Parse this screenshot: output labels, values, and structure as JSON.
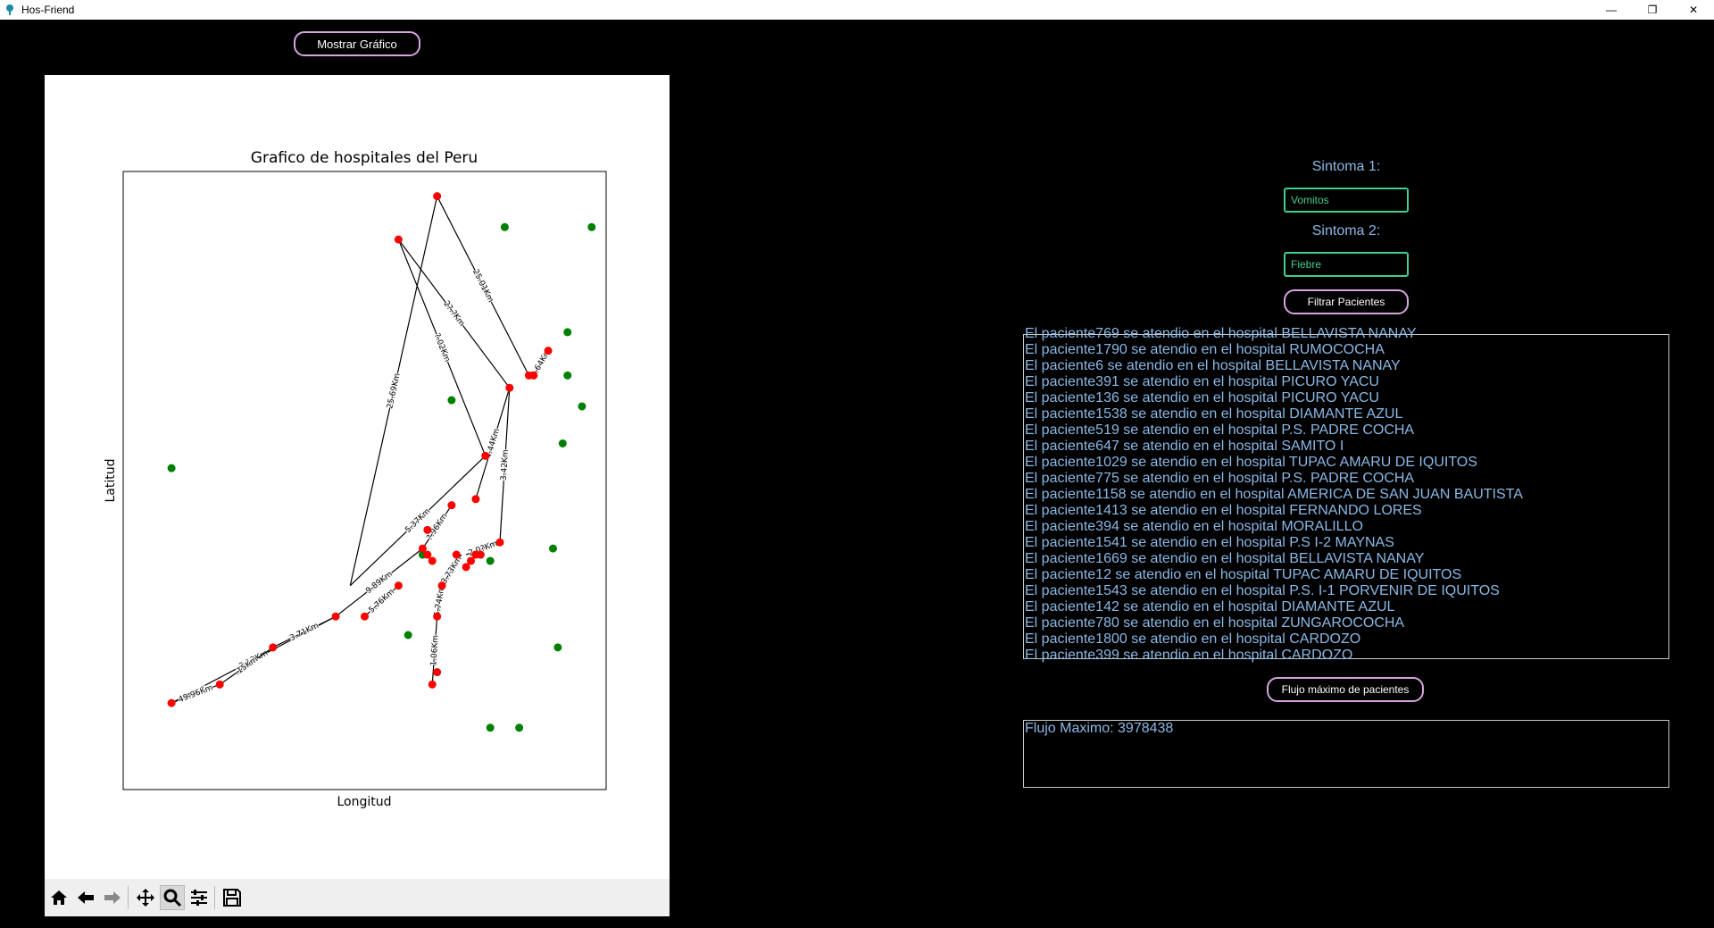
{
  "window": {
    "title": "Hos-Friend",
    "controls": {
      "minimize": "—",
      "restore": "❐",
      "close": "✕"
    }
  },
  "buttons": {
    "show_chart": "Mostrar Gráfico",
    "filter_patients": "Filtrar Pacientes",
    "max_flow": "Flujo máximo de pacientes"
  },
  "symptoms": {
    "label1": "Sintoma 1:",
    "value1": "Vomitos",
    "label2": "Sintoma 2:",
    "value2": "Fiebre"
  },
  "patients": [
    "El paciente769 se atendio en el hospital BELLAVISTA NANAY",
    "El paciente1790 se atendio en el hospital RUMOCOCHA",
    "El paciente6 se atendio en el hospital BELLAVISTA NANAY",
    "El paciente391 se atendio en el hospital PICURO YACU",
    "El paciente136 se atendio en el hospital PICURO YACU",
    "El paciente1538 se atendio en el hospital DIAMANTE AZUL",
    "El paciente519 se atendio en el hospital P.S. PADRE COCHA",
    "El paciente647 se atendio en el hospital SAMITO I",
    "El paciente1029 se atendio en el hospital TUPAC AMARU DE IQUITOS",
    "El paciente775 se atendio en el hospital P.S. PADRE COCHA",
    "El paciente1158 se atendio en el hospital AMERICA DE SAN JUAN BAUTISTA",
    "El paciente1413 se atendio en el hospital FERNANDO LORES",
    "El paciente394 se atendio en el hospital MORALILLO",
    "El paciente1541 se atendio en el hospital P.S I-2 MAYNAS",
    "El paciente1669 se atendio en el hospital BELLAVISTA NANAY",
    "El paciente12 se atendio en el hospital TUPAC AMARU DE IQUITOS",
    "El paciente1543 se atendio en el hospital P.S. I-1 PORVENIR DE IQUITOS",
    "El paciente142 se atendio en el hospital DIAMANTE AZUL",
    "El paciente780 se atendio en el hospital ZUNGAROCOCHA",
    "El paciente1800 se atendio en el hospital CARDOZO",
    "El paciente399 se atendio en el hospital CARDOZO"
  ],
  "flow": {
    "text": "Flujo Maximo: 3978438"
  },
  "colors": {
    "route_node": "#ff0000",
    "other_node": "#008000",
    "edge": "#000000",
    "accent_border": "#d9a3e0",
    "input_border": "#3fcf8e",
    "text_blue": "#8bb8e6"
  },
  "toolbar": {
    "icons": [
      "home-icon",
      "back-icon",
      "forward-icon",
      "pan-icon",
      "zoom-icon",
      "configure-icon",
      "save-icon"
    ]
  },
  "chart_data": {
    "type": "scatter",
    "title": "Grafico de hospitales del Peru",
    "xlabel": "Longitud",
    "ylabel": "Latitud",
    "xlim": [
      0,
      100
    ],
    "ylim": [
      0,
      100
    ],
    "grid": false,
    "red_points": [
      [
        65,
        96
      ],
      [
        57,
        89
      ],
      [
        88,
        71
      ],
      [
        84,
        67
      ],
      [
        85,
        67
      ],
      [
        80,
        65
      ],
      [
        75,
        54
      ],
      [
        73,
        47
      ],
      [
        68,
        46
      ],
      [
        78,
        40
      ],
      [
        63,
        42
      ],
      [
        62,
        39
      ],
      [
        63,
        38
      ],
      [
        64,
        37
      ],
      [
        69,
        38
      ],
      [
        73,
        38
      ],
      [
        74,
        38
      ],
      [
        71,
        36
      ],
      [
        72,
        37
      ],
      [
        57,
        33
      ],
      [
        66,
        33
      ],
      [
        65,
        28
      ],
      [
        50,
        28
      ],
      [
        44,
        28
      ],
      [
        31,
        23
      ],
      [
        20,
        17
      ],
      [
        10,
        14
      ],
      [
        65,
        19
      ],
      [
        64,
        17
      ]
    ],
    "green_points": [
      [
        79,
        91
      ],
      [
        97,
        91
      ],
      [
        92,
        74
      ],
      [
        92,
        67
      ],
      [
        95,
        62
      ],
      [
        68,
        63
      ],
      [
        91,
        56
      ],
      [
        10,
        52
      ],
      [
        62,
        38
      ],
      [
        76,
        37
      ],
      [
        89,
        39
      ],
      [
        59,
        25
      ],
      [
        90,
        23
      ],
      [
        76,
        10
      ],
      [
        82,
        10
      ]
    ],
    "edges": [
      {
        "from": [
          65,
          96
        ],
        "to": [
          47,
          33
        ],
        "label": "25.69Km"
      },
      {
        "from": [
          65,
          96
        ],
        "to": [
          84,
          67
        ],
        "label": "25.01Km"
      },
      {
        "from": [
          57,
          89
        ],
        "to": [
          80,
          65
        ],
        "label": "2?.?Km"
      },
      {
        "from": [
          57,
          89
        ],
        "to": [
          75,
          54
        ],
        "label": "?.02Km"
      },
      {
        "from": [
          85,
          67
        ],
        "to": [
          88,
          71
        ],
        "label": "3.64Km"
      },
      {
        "from": [
          80,
          65
        ],
        "to": [
          73,
          47
        ],
        "label": "4.44Km"
      },
      {
        "from": [
          80,
          65
        ],
        "to": [
          78,
          40
        ],
        "label": "3.42Km"
      },
      {
        "from": [
          75,
          54
        ],
        "to": [
          47,
          33
        ],
        "label": "5.37Km"
      },
      {
        "from": [
          68,
          46
        ],
        "to": [
          62,
          39
        ],
        "label": "?.96Km"
      },
      {
        "from": [
          62,
          39
        ],
        "to": [
          44,
          28
        ],
        "label": "9.89Km"
      },
      {
        "from": [
          57,
          33
        ],
        "to": [
          50,
          28
        ],
        "label": "5.76Km"
      },
      {
        "from": [
          44,
          28
        ],
        "to": [
          10,
          14
        ],
        "label": "2.13Km"
      },
      {
        "from": [
          44,
          28
        ],
        "to": [
          31,
          23
        ],
        "label": "3.71Km"
      },
      {
        "from": [
          31,
          23
        ],
        "to": [
          20,
          17
        ],
        "label": ".15Km"
      },
      {
        "from": [
          10,
          14
        ],
        "to": [
          20,
          17
        ],
        "label": "49.96Km"
      },
      {
        "from": [
          66,
          33
        ],
        "to": [
          65,
          28
        ],
        "label": "5.74Km"
      },
      {
        "from": [
          65,
          28
        ],
        "to": [
          64,
          17
        ],
        "label": "1.06Km"
      },
      {
        "from": [
          70,
          38
        ],
        "to": [
          66,
          33
        ],
        "label": "3.73Km"
      },
      {
        "from": [
          71,
          38
        ],
        "to": [
          78,
          40
        ],
        "label": "2.0?Km"
      }
    ]
  }
}
